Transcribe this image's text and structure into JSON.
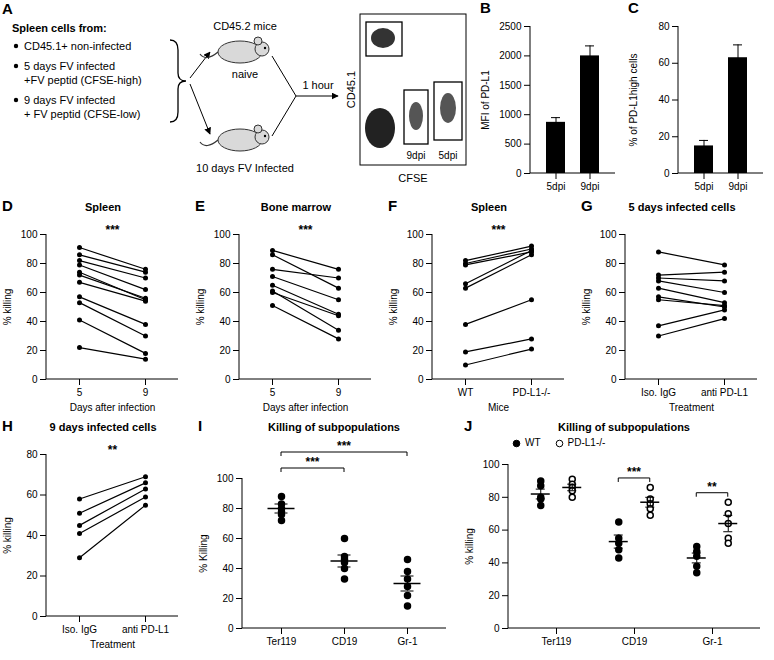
{
  "chart_data": [
    {
      "panel": "A",
      "type": "diagram",
      "source_title": "Spleen cells from:",
      "sources": [
        [
          "CD45.1+ non-infected"
        ],
        [
          "5 days FV infected",
          "+FV peptid (CFSE-high)"
        ],
        [
          "9 days FV infected",
          "+ FV peptid (CFSE-low)"
        ]
      ],
      "mouse_top": {
        "above": "CD45.2 mice",
        "below": "naive"
      },
      "mouse_bottom": {
        "below": "10 days FV Infected"
      },
      "arrow_label": "1 hour",
      "flow": {
        "xlabel": "CFSE",
        "ylabel": "CD45.1",
        "gates": [
          "9dpi",
          "5dpi"
        ]
      }
    },
    {
      "panel": "B",
      "type": "bar",
      "categories": [
        "5dpi",
        "9dpi"
      ],
      "values": [
        870,
        2000
      ],
      "errors": [
        80,
        170
      ],
      "ylabel": "MFI of PD-L1",
      "ylim": [
        0,
        2500
      ],
      "yticks": [
        0,
        500,
        1000,
        1500,
        2000,
        2500
      ],
      "color": "#000000"
    },
    {
      "panel": "C",
      "type": "bar",
      "categories": [
        "5dpi",
        "9dpi"
      ],
      "values": [
        15,
        63
      ],
      "errors": [
        3,
        7
      ],
      "ylabel": "% of PD-L1high cells",
      "ylim": [
        0,
        80
      ],
      "yticks": [
        0,
        20,
        40,
        60,
        80
      ],
      "color": "#000000"
    },
    {
      "panel": "D",
      "type": "paired",
      "title": "Spleen",
      "categories": [
        "5",
        "9"
      ],
      "xlabel": "Days after infection",
      "ylabel": "% killing",
      "ylim": [
        0,
        100
      ],
      "yticks": [
        0,
        20,
        40,
        60,
        80,
        100
      ],
      "significance": "***",
      "color": "#000000",
      "pairs": [
        [
          91,
          76
        ],
        [
          86,
          74
        ],
        [
          82,
          70
        ],
        [
          79,
          62
        ],
        [
          74,
          55
        ],
        [
          72,
          56
        ],
        [
          67,
          54
        ],
        [
          57,
          38
        ],
        [
          53,
          30
        ],
        [
          41,
          18
        ],
        [
          22,
          14
        ]
      ]
    },
    {
      "panel": "E",
      "type": "paired",
      "title": "Bone marrow",
      "categories": [
        "5",
        "9"
      ],
      "xlabel": "Days after infection",
      "ylabel": "% killing",
      "ylim": [
        0,
        100
      ],
      "yticks": [
        0,
        20,
        40,
        60,
        80,
        100
      ],
      "significance": "***",
      "color": "#000000",
      "pairs": [
        [
          89,
          76
        ],
        [
          86,
          63
        ],
        [
          76,
          70
        ],
        [
          71,
          55
        ],
        [
          65,
          45
        ],
        [
          61,
          34
        ],
        [
          60,
          44
        ],
        [
          51,
          28
        ]
      ]
    },
    {
      "panel": "F",
      "type": "paired",
      "title": "Spleen",
      "categories": [
        "WT",
        "PD-L1-/-"
      ],
      "xlabel": "Mice",
      "ylabel": "% killing",
      "ylim": [
        0,
        100
      ],
      "yticks": [
        0,
        20,
        40,
        60,
        80,
        100
      ],
      "significance": "***",
      "color": "#000000",
      "pairs": [
        [
          82,
          92
        ],
        [
          80,
          90
        ],
        [
          79,
          88
        ],
        [
          66,
          89
        ],
        [
          63,
          86
        ],
        [
          38,
          55
        ],
        [
          19,
          28
        ],
        [
          10,
          21
        ]
      ]
    },
    {
      "panel": "G",
      "type": "paired",
      "title": "5 days infected cells",
      "categories": [
        "Iso. IgG",
        "anti PD-L1"
      ],
      "xlabel": "Treatment",
      "ylabel": "% killing",
      "ylim": [
        0,
        100
      ],
      "yticks": [
        0,
        20,
        40,
        60,
        80,
        100
      ],
      "color": "#000000",
      "pairs": [
        [
          88,
          79
        ],
        [
          72,
          74
        ],
        [
          70,
          68
        ],
        [
          68,
          60
        ],
        [
          63,
          53
        ],
        [
          57,
          50
        ],
        [
          55,
          51
        ],
        [
          37,
          48
        ],
        [
          30,
          42
        ]
      ]
    },
    {
      "panel": "H",
      "type": "paired",
      "title": "9 days infected cells",
      "categories": [
        "Iso. IgG",
        "anti PD-L1"
      ],
      "xlabel": "Treatment",
      "ylabel": "% killing",
      "ylim": [
        0,
        80
      ],
      "yticks": [
        0,
        20,
        40,
        60,
        80
      ],
      "significance": "**",
      "color": "#000000",
      "pairs": [
        [
          58,
          69
        ],
        [
          51,
          66
        ],
        [
          45,
          63
        ],
        [
          41,
          59
        ],
        [
          29,
          55
        ]
      ]
    },
    {
      "panel": "I",
      "type": "scatter",
      "title": "Killing of subpopulations",
      "categories": [
        "Ter119",
        "CD19",
        "Gr-1"
      ],
      "ylabel": "% Killing",
      "ylim": [
        0,
        100
      ],
      "yticks": [
        0,
        20,
        40,
        60,
        80,
        100
      ],
      "color": "#000000",
      "marker": "filled",
      "values": [
        [
          88,
          83,
          80,
          78,
          76,
          72
        ],
        [
          60,
          48,
          46,
          44,
          40,
          33
        ],
        [
          46,
          38,
          33,
          28,
          22,
          15
        ]
      ],
      "means": [
        80,
        45,
        30
      ],
      "errors": [
        3,
        4,
        5
      ],
      "comparisons": [
        {
          "from": "Ter119",
          "to": "CD19",
          "label": "***"
        },
        {
          "from": "Ter119",
          "to": "Gr-1",
          "label": "***"
        }
      ]
    },
    {
      "panel": "J",
      "type": "scatter",
      "title": "Killing of subpopulations",
      "categories": [
        "Ter119",
        "CD19",
        "Gr-1"
      ],
      "ylabel": "% killing",
      "ylim": [
        0,
        100
      ],
      "yticks": [
        0,
        20,
        40,
        60,
        80,
        100
      ],
      "color": "#000000",
      "legend": "top-left",
      "series": [
        {
          "name": "WT",
          "marker": "filled",
          "values": [
            [
              90,
              87,
              80,
              79,
              75
            ],
            [
              65,
              55,
              52,
              48,
              43
            ],
            [
              50,
              47,
              44,
              38,
              34
            ]
          ],
          "means": [
            82,
            53,
            43
          ],
          "errors": [
            3,
            4,
            3
          ]
        },
        {
          "name": "PD-L1-/-",
          "marker": "open",
          "values": [
            [
              91,
              88,
              86,
              84,
              80
            ],
            [
              86,
              79,
              76,
              73,
              69
            ],
            [
              77,
              70,
              64,
              55,
              52
            ]
          ],
          "means": [
            86,
            77,
            64
          ],
          "errors": [
            2,
            3,
            5
          ]
        }
      ],
      "comparisons": [
        {
          "category": "CD19",
          "label": "***"
        },
        {
          "category": "Gr-1",
          "label": "**"
        }
      ]
    }
  ]
}
